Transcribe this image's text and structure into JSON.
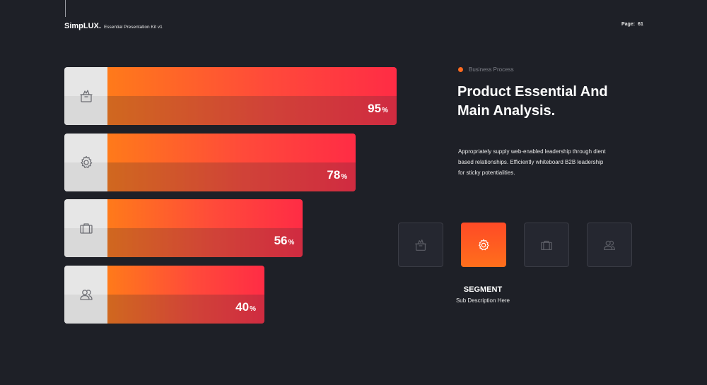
{
  "header": {
    "brand": "SimpLUX.",
    "subtitle": "Essential Presentation Kit v1",
    "page_label": "Page:",
    "page_number": "61"
  },
  "colors": {
    "background": "#1e2027",
    "accent_orange": "#ff7a1a",
    "accent_red": "#ff2c45",
    "tile_border": "#3a3c45"
  },
  "chart_data": {
    "type": "bar",
    "orientation": "horizontal",
    "categories": [
      "box",
      "gear",
      "briefcase",
      "users"
    ],
    "values": [
      95,
      78,
      56,
      40
    ],
    "value_labels": [
      "95",
      "78",
      "56",
      "40"
    ],
    "unit": "%",
    "icons": [
      "box-icon",
      "gear-icon",
      "briefcase-icon",
      "users-icon"
    ]
  },
  "content": {
    "section_label": "Business Process",
    "headline_line1": "Product Essential And",
    "headline_line2": "Main Analysis.",
    "description_line1": "Appropriately supply web-enabled leadership through dient",
    "description_line2": "based relationships. Efficiently whiteboard B2B leadership",
    "description_line3": "for sticky potentialities."
  },
  "tiles": [
    {
      "icon": "box-icon",
      "active": false
    },
    {
      "icon": "gear-icon",
      "active": true
    },
    {
      "icon": "briefcase-icon",
      "active": false
    },
    {
      "icon": "users-icon",
      "active": false
    }
  ],
  "segment": {
    "title": "SEGMENT",
    "subtitle": "Sub Description Here"
  }
}
